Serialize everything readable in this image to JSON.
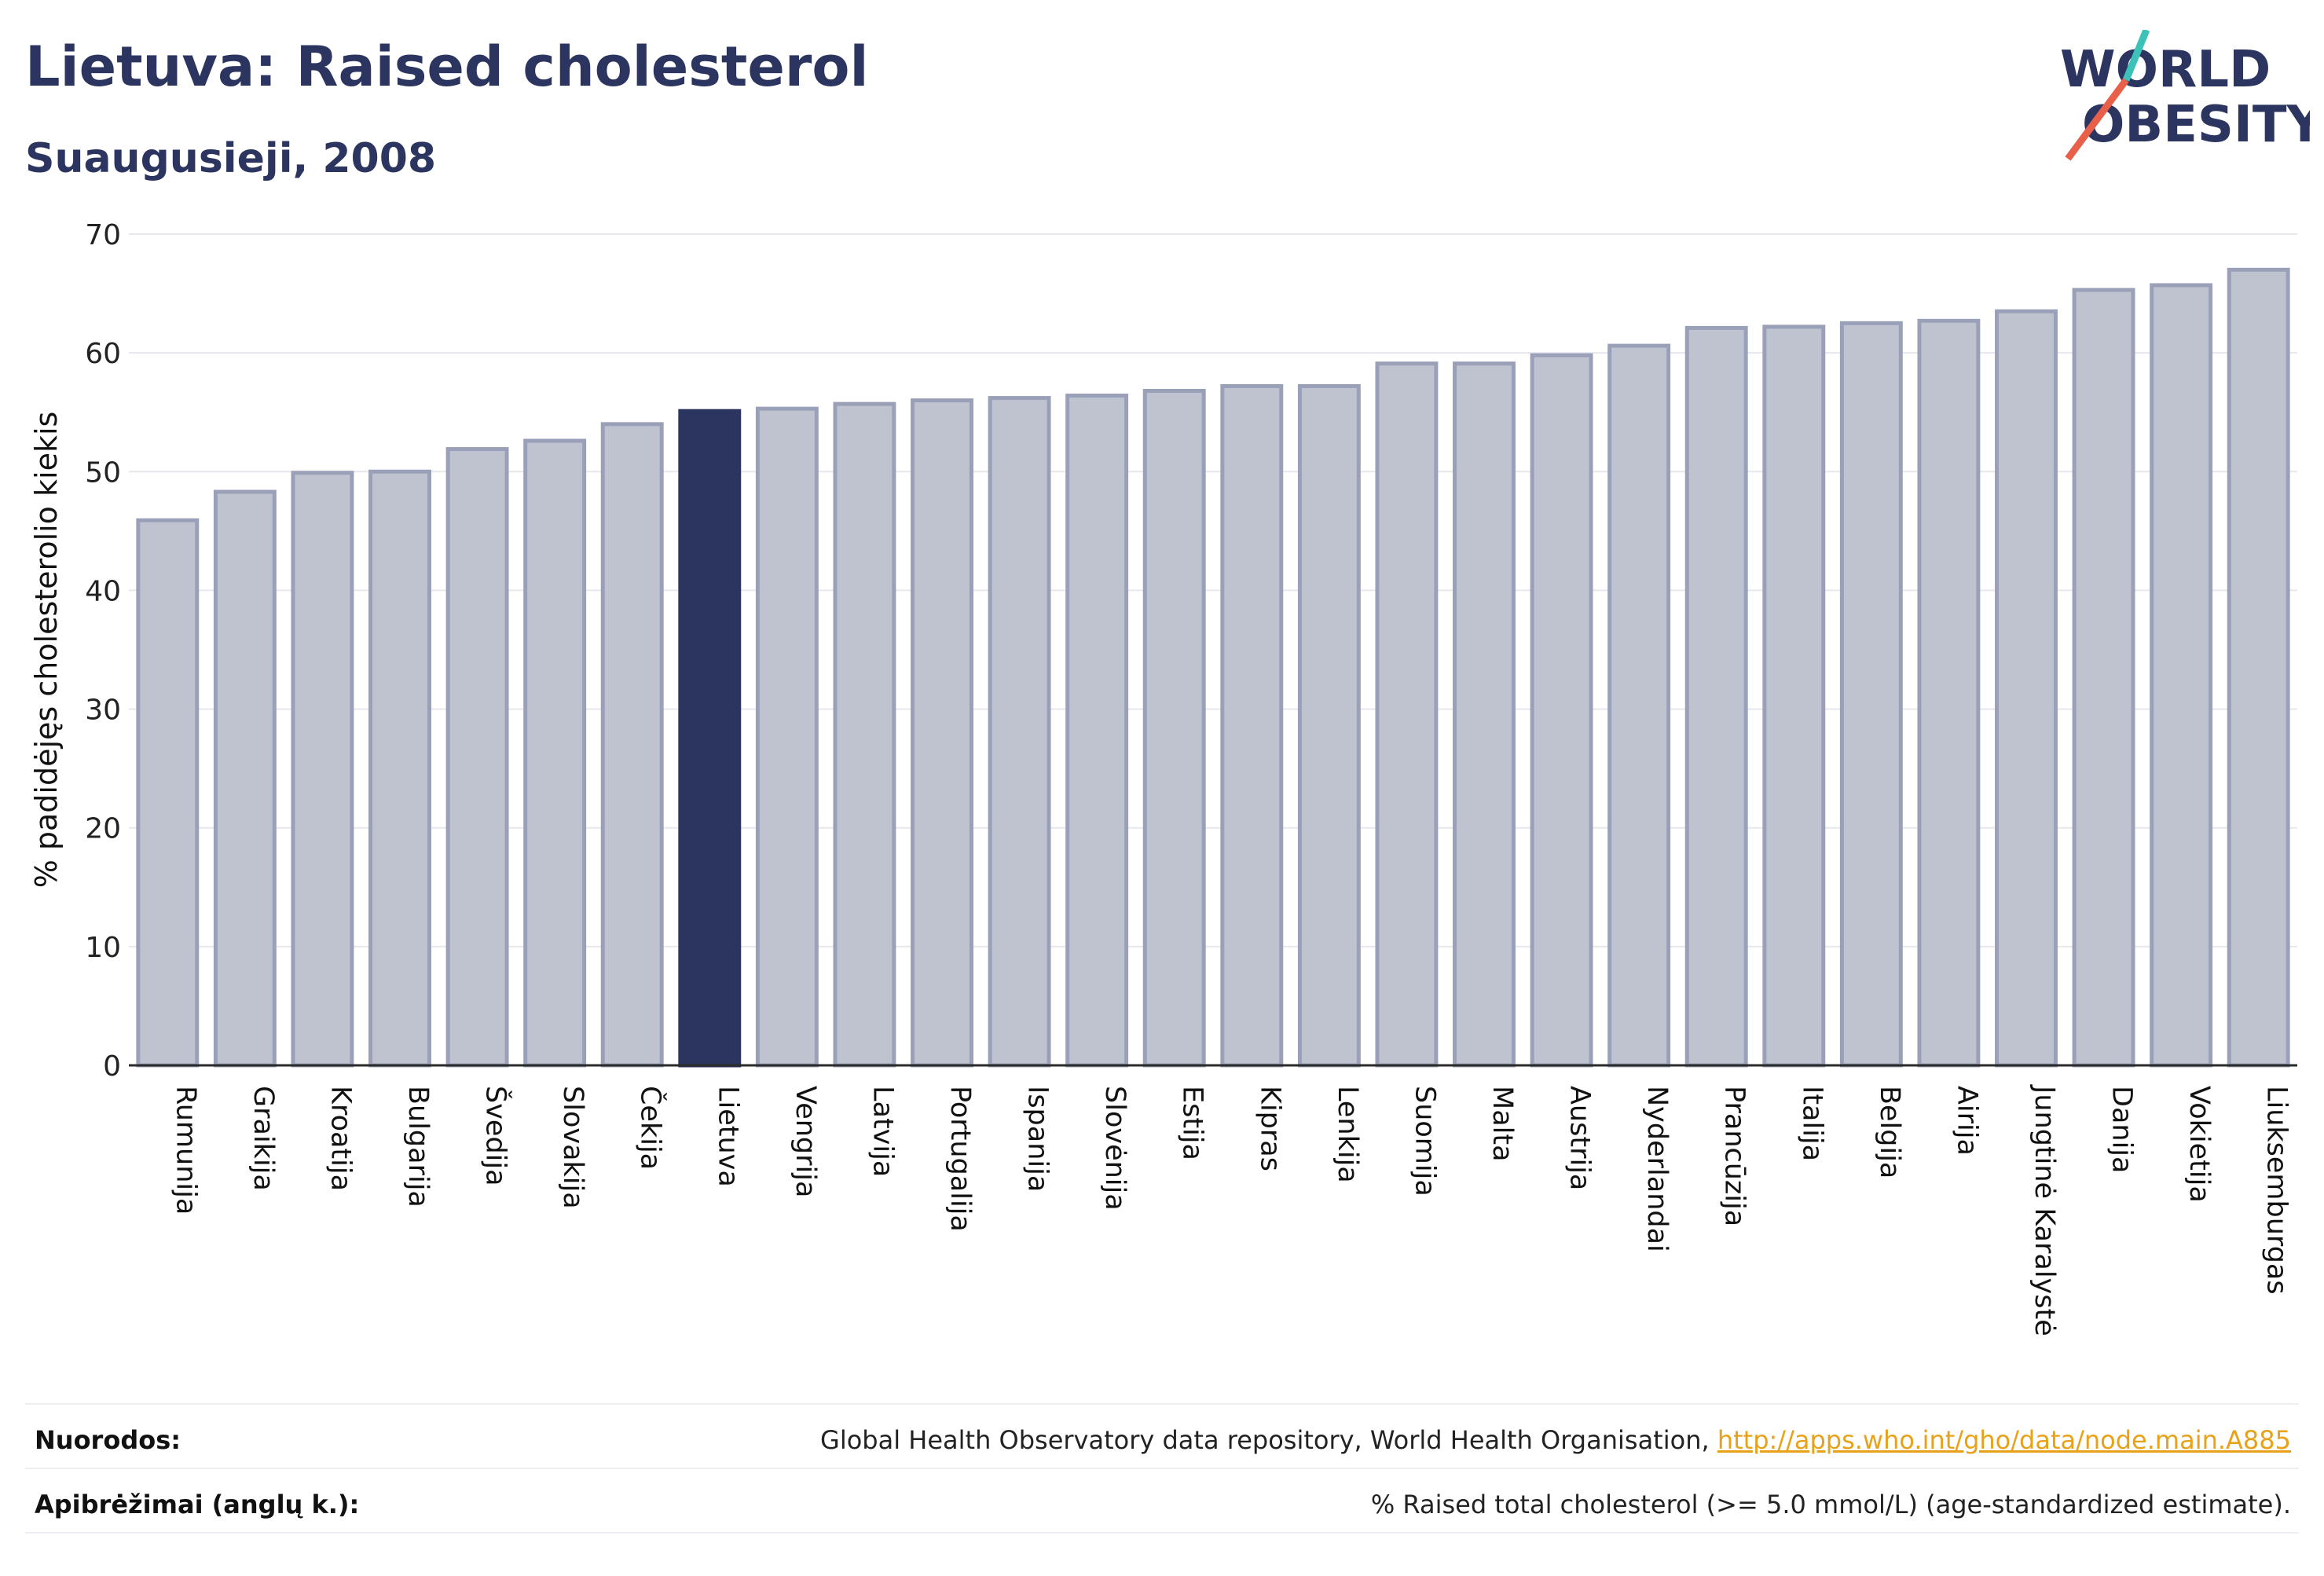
{
  "header": {
    "title": "Lietuva: Raised cholesterol",
    "subtitle": "Suaugusieji, 2008"
  },
  "logo": {
    "line1": "WORLD",
    "line2": "OBESITY",
    "icon": "world-obesity-logo"
  },
  "colors": {
    "title": "#2b3560",
    "bar": "#bfc3d0",
    "bar_border": "#9aa0b8",
    "highlight": "#2b3560",
    "grid": "#e6e8ee",
    "axis": "#2b2b2b",
    "link": "#e8a21a",
    "logo_slash_teal": "#3cc2b8",
    "logo_slash_red": "#e8604a"
  },
  "chart_data": {
    "type": "bar",
    "ylabel": "% padidėjęs cholesterolio kiekis",
    "ylim": [
      0,
      70
    ],
    "yticks": [
      0,
      10,
      20,
      30,
      40,
      50,
      60,
      70
    ],
    "grid": true,
    "highlight": "Lietuva",
    "categories": [
      "Rumunija",
      "Graikija",
      "Kroatija",
      "Bulgarija",
      "Švedija",
      "Slovakija",
      "Čekija",
      "Lietuva",
      "Vengrija",
      "Latvija",
      "Portugalija",
      "Ispanija",
      "Slovėnija",
      "Estija",
      "Kipras",
      "Lenkija",
      "Suomija",
      "Malta",
      "Austrija",
      "Nyderlandai",
      "Prancūzija",
      "Italija",
      "Belgija",
      "Airija",
      "Jungtinė Karalystė",
      "Danija",
      "Vokietija",
      "Liuksemburgas"
    ],
    "values": [
      45.9,
      48.3,
      49.9,
      50.0,
      51.9,
      52.6,
      54.0,
      55.1,
      55.3,
      55.7,
      56.0,
      56.2,
      56.4,
      56.8,
      57.2,
      57.2,
      59.1,
      59.1,
      59.8,
      60.6,
      62.1,
      62.2,
      62.5,
      62.7,
      63.5,
      65.3,
      65.7,
      67.0
    ]
  },
  "references": {
    "sources_label": "Nuorodos:",
    "sources_text": "Global Health Observatory data repository, World Health Organisation, ",
    "sources_link": "http://apps.who.int/gho/data/node.main.A885",
    "definitions_label": "Apibrėžimai (anglų k.):",
    "definitions_text": "% Raised total cholesterol (>= 5.0 mmol/L) (age-standardized estimate)."
  }
}
